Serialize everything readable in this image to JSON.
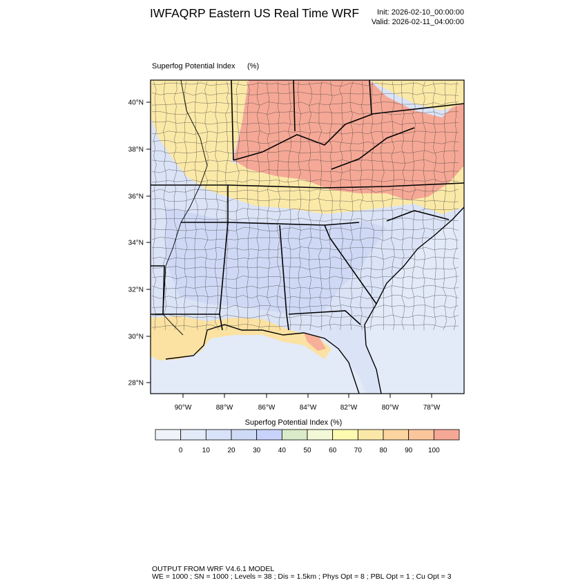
{
  "header": {
    "title": "IWFAQRP Eastern US Real Time WRF",
    "init": "Init: 2026-02-10_00:00:00",
    "valid": "Valid: 2026-02-11_04:00:00"
  },
  "field": {
    "name": "Superfog Potential Index",
    "units": "(%)"
  },
  "axes": {
    "lat_labels": [
      "40°N",
      "38°N",
      "36°N",
      "34°N",
      "32°N",
      "30°N",
      "28°N"
    ],
    "lon_labels": [
      "90°W",
      "88°W",
      "86°W",
      "84°W",
      "82°W",
      "80°W",
      "78°W"
    ]
  },
  "colorbar": {
    "title": "Superfog Potential Index  (%)",
    "labels": [
      "0",
      "10",
      "20",
      "30",
      "40",
      "50",
      "60",
      "70",
      "80",
      "90",
      "100"
    ],
    "colors": [
      "#f0f4fa",
      "#e3eaf8",
      "#d8e2f8",
      "#cfdaf6",
      "#c8d3fb",
      "#d9ebc8",
      "#f3f8d8",
      "#fdfbb0",
      "#fbe8a8",
      "#fdd5a0",
      "#fcc69c",
      "#f5a896"
    ]
  },
  "footer": {
    "line1": "OUTPUT FROM WRF V4.6.1 MODEL",
    "line2": "WE = 1000 ; SN = 1000 ; Levels = 38 ; Dis = 1.5km ; Phys Opt = 8 ; PBL Opt = 1 ; Cu Opt = 3"
  }
}
